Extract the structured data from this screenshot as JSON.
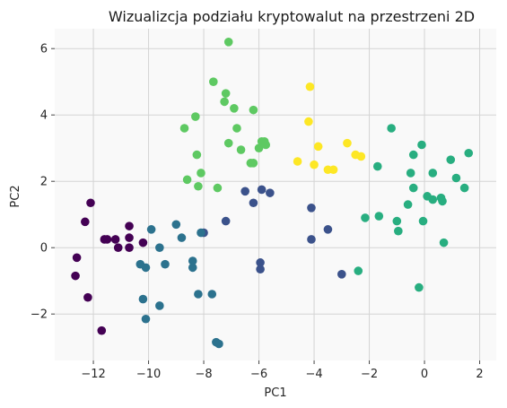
{
  "chart_data": {
    "type": "scatter",
    "title": "Wizualizcja podziału kryptowalut na przestrzeni 2D",
    "xlabel": "PC1",
    "ylabel": "PC2",
    "xlim": [
      -13.4,
      2.6
    ],
    "ylim": [
      -3.4,
      6.6
    ],
    "xticks": [
      -12,
      -10,
      -8,
      -6,
      -4,
      -2,
      0,
      2
    ],
    "yticks": [
      -2,
      0,
      2,
      4,
      6
    ],
    "xtick_labels": [
      "−12",
      "−10",
      "−8",
      "−6",
      "−4",
      "−2",
      "0",
      "2"
    ],
    "ytick_labels": [
      "−2",
      "0",
      "2",
      "4",
      "6"
    ],
    "grid": true,
    "background": "#f9f9f9",
    "grid_color": "#d4d4d4",
    "clusters": [
      {
        "color": "#440154",
        "points": [
          [
            -12.1,
            1.35
          ],
          [
            -12.3,
            0.78
          ],
          [
            -12.6,
            -0.3
          ],
          [
            -12.65,
            -0.85
          ],
          [
            -12.2,
            -1.5
          ],
          [
            -11.7,
            -2.5
          ],
          [
            -11.6,
            0.25
          ],
          [
            -11.5,
            0.25
          ],
          [
            -11.2,
            0.25
          ],
          [
            -11.1,
            0
          ],
          [
            -10.7,
            0.65
          ],
          [
            -10.7,
            0.3
          ],
          [
            -10.7,
            0
          ],
          [
            -10.2,
            0.15
          ]
        ]
      },
      {
        "color": "#3b528b",
        "points": [
          [
            -8.0,
            0.45
          ],
          [
            -7.2,
            0.8
          ],
          [
            -6.5,
            1.7
          ],
          [
            -6.2,
            1.35
          ],
          [
            -5.9,
            1.75
          ],
          [
            -5.6,
            1.65
          ],
          [
            -5.95,
            -0.45
          ],
          [
            -5.95,
            -0.65
          ],
          [
            -4.1,
            1.2
          ],
          [
            -4.1,
            0.25
          ],
          [
            -3.5,
            0.55
          ],
          [
            -3.0,
            -0.8
          ]
        ]
      },
      {
        "color": "#2c728e",
        "points": [
          [
            -10.3,
            -0.5
          ],
          [
            -10.1,
            -0.6
          ],
          [
            -9.9,
            0.55
          ],
          [
            -9.6,
            0
          ],
          [
            -9.4,
            -0.5
          ],
          [
            -9.0,
            0.7
          ],
          [
            -8.8,
            0.3
          ],
          [
            -8.4,
            -0.4
          ],
          [
            -8.4,
            -0.6
          ],
          [
            -8.1,
            0.45
          ],
          [
            -8.2,
            -1.4
          ],
          [
            -7.7,
            -1.4
          ],
          [
            -10.2,
            -1.55
          ],
          [
            -10.1,
            -2.15
          ],
          [
            -9.6,
            -1.75
          ],
          [
            -7.55,
            -2.85
          ],
          [
            -7.45,
            -2.9
          ]
        ]
      },
      {
        "color": "#21918c",
        "points": []
      },
      {
        "color": "#28ae80",
        "points": [
          [
            -1.2,
            3.6
          ],
          [
            -0.1,
            3.1
          ],
          [
            -1.7,
            2.45
          ],
          [
            -0.5,
            2.25
          ],
          [
            -0.4,
            2.8
          ],
          [
            0.3,
            2.25
          ],
          [
            0.95,
            2.65
          ],
          [
            1.6,
            2.85
          ],
          [
            1.15,
            2.1
          ],
          [
            1.45,
            1.8
          ],
          [
            0.1,
            1.55
          ],
          [
            0.3,
            1.45
          ],
          [
            0.6,
            1.5
          ],
          [
            0.65,
            1.4
          ],
          [
            -0.4,
            1.8
          ],
          [
            -0.6,
            1.3
          ],
          [
            -2.15,
            0.9
          ],
          [
            -1.65,
            0.95
          ],
          [
            -1.0,
            0.8
          ],
          [
            -0.05,
            0.8
          ],
          [
            -0.95,
            0.5
          ],
          [
            0.7,
            0.15
          ],
          [
            -2.4,
            -0.7
          ],
          [
            -0.2,
            -1.2
          ]
        ]
      },
      {
        "color": "#5ec962",
        "points": [
          [
            -7.1,
            6.2
          ],
          [
            -7.65,
            5.0
          ],
          [
            -7.2,
            4.65
          ],
          [
            -7.25,
            4.4
          ],
          [
            -6.9,
            4.2
          ],
          [
            -6.2,
            4.15
          ],
          [
            -8.3,
            3.95
          ],
          [
            -8.7,
            3.6
          ],
          [
            -6.8,
            3.6
          ],
          [
            -7.1,
            3.15
          ],
          [
            -6.65,
            2.95
          ],
          [
            -6.0,
            3.0
          ],
          [
            -5.9,
            3.2
          ],
          [
            -6.2,
            2.55
          ],
          [
            -8.25,
            2.8
          ],
          [
            -8.6,
            2.05
          ],
          [
            -8.1,
            2.25
          ],
          [
            -8.2,
            1.85
          ],
          [
            -7.5,
            1.8
          ],
          [
            -5.8,
            3.2
          ],
          [
            -5.75,
            3.1
          ],
          [
            -6.3,
            2.55
          ]
        ]
      },
      {
        "color": "#fde725",
        "points": [
          [
            -4.15,
            4.85
          ],
          [
            -4.2,
            3.8
          ],
          [
            -3.85,
            3.05
          ],
          [
            -2.8,
            3.15
          ],
          [
            -4.6,
            2.6
          ],
          [
            -4.0,
            2.5
          ],
          [
            -3.5,
            2.35
          ],
          [
            -3.3,
            2.35
          ],
          [
            -2.5,
            2.8
          ],
          [
            -2.3,
            2.75
          ]
        ]
      }
    ]
  }
}
